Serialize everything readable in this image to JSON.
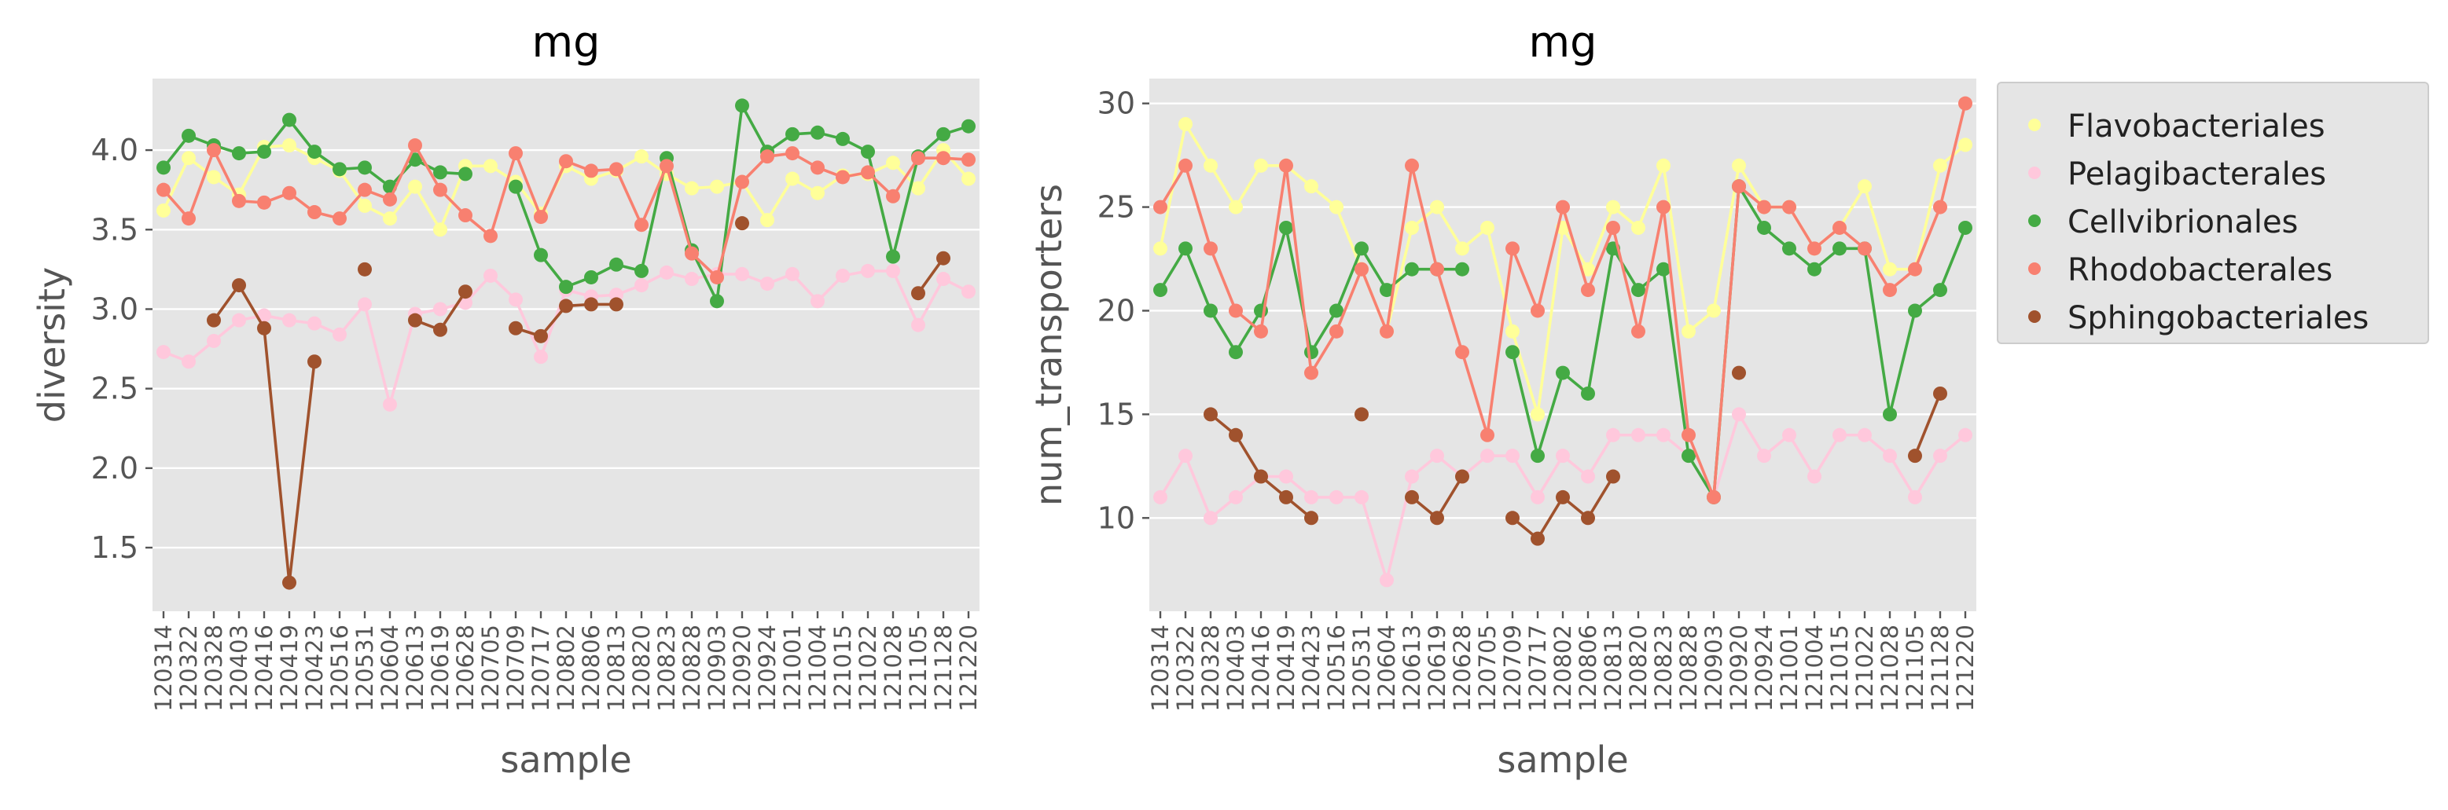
{
  "colors": {
    "Flavobacteriales": "#ffff99",
    "Pelagibacterales": "#ffc8dc",
    "Cellvibrionales": "#44aa44",
    "Rhodobacterales": "#f88070",
    "Sphingobacteriales": "#a0522d",
    "panel_bg": "#e5e5e5",
    "grid": "#ffffff"
  },
  "chart_data": [
    {
      "type": "line",
      "title": "mg",
      "xlabel": "sample",
      "ylabel": "diversity",
      "ylim": [
        1.1,
        4.45
      ],
      "yticks": [
        "1.5",
        "2.0",
        "2.5",
        "3.0",
        "3.5",
        "4.0"
      ],
      "grid": true,
      "categories": [
        "120314",
        "120322",
        "120328",
        "120403",
        "120416",
        "120419",
        "120423",
        "120516",
        "120531",
        "120604",
        "120613",
        "120619",
        "120628",
        "120705",
        "120709",
        "120717",
        "120802",
        "120806",
        "120813",
        "120820",
        "120823",
        "120828",
        "120903",
        "120920",
        "120924",
        "121001",
        "121004",
        "121015",
        "121022",
        "121028",
        "121105",
        "121128",
        "121220"
      ],
      "series": [
        {
          "name": "Flavobacteriales",
          "values": [
            3.62,
            3.95,
            3.83,
            3.72,
            4.02,
            4.03,
            3.95,
            3.87,
            3.65,
            3.57,
            3.77,
            3.5,
            3.9,
            3.9,
            3.8,
            3.6,
            3.9,
            3.82,
            3.87,
            3.96,
            3.85,
            3.76,
            3.77,
            3.8,
            3.56,
            3.82,
            3.73,
            3.84,
            3.85,
            3.92,
            3.76,
            4.0,
            3.82
          ]
        },
        {
          "name": "Pelagibacterales",
          "values": [
            2.73,
            2.67,
            2.8,
            2.93,
            2.96,
            2.93,
            2.91,
            2.84,
            3.03,
            2.4,
            2.97,
            3.0,
            3.04,
            3.21,
            3.06,
            2.7,
            3.12,
            3.08,
            3.09,
            3.15,
            3.23,
            3.19,
            3.22,
            3.22,
            3.16,
            3.22,
            3.05,
            3.21,
            3.24,
            3.24,
            2.9,
            3.19,
            3.11
          ]
        },
        {
          "name": "Cellvibrionales",
          "values": [
            3.89,
            4.09,
            4.03,
            3.98,
            3.99,
            4.19,
            3.99,
            3.88,
            3.89,
            3.77,
            3.94,
            3.86,
            3.85,
            null,
            3.77,
            3.34,
            3.14,
            3.2,
            3.28,
            3.24,
            3.95,
            3.37,
            3.05,
            4.28,
            3.99,
            4.1,
            4.11,
            4.07,
            3.99,
            3.33,
            3.96,
            4.1,
            4.15
          ]
        },
        {
          "name": "Rhodobacterales",
          "values": [
            3.75,
            3.57,
            4.0,
            3.68,
            3.67,
            3.73,
            3.61,
            3.57,
            3.75,
            3.69,
            4.03,
            3.75,
            3.59,
            3.46,
            3.98,
            3.58,
            3.93,
            3.87,
            3.88,
            3.53,
            3.9,
            3.35,
            3.2,
            3.8,
            3.96,
            3.98,
            3.89,
            3.83,
            3.86,
            3.71,
            3.95,
            3.95,
            3.94
          ]
        },
        {
          "name": "Sphingobacteriales",
          "values": [
            null,
            null,
            2.93,
            3.15,
            2.88,
            1.28,
            2.67,
            null,
            3.25,
            null,
            2.93,
            2.87,
            3.11,
            null,
            2.88,
            2.83,
            3.02,
            3.03,
            3.03,
            null,
            null,
            null,
            null,
            3.54,
            null,
            null,
            null,
            null,
            null,
            null,
            3.1,
            3.32,
            null
          ]
        }
      ]
    },
    {
      "type": "line",
      "title": "mg",
      "xlabel": "sample",
      "ylabel": "num_transporters",
      "ylim": [
        5.5,
        31.2
      ],
      "yticks": [
        "10",
        "15",
        "20",
        "25",
        "30"
      ],
      "grid": true,
      "legend": "outside-right",
      "categories": [
        "120314",
        "120322",
        "120328",
        "120403",
        "120416",
        "120419",
        "120423",
        "120516",
        "120531",
        "120604",
        "120613",
        "120619",
        "120628",
        "120705",
        "120709",
        "120717",
        "120802",
        "120806",
        "120813",
        "120820",
        "120823",
        "120828",
        "120903",
        "120920",
        "120924",
        "121001",
        "121004",
        "121015",
        "121022",
        "121028",
        "121105",
        "121128",
        "121220"
      ],
      "series": [
        {
          "name": "Flavobacteriales",
          "values": [
            23,
            29,
            27,
            25,
            27,
            27,
            26,
            25,
            22,
            19,
            24,
            25,
            23,
            24,
            19,
            15,
            24,
            22,
            25,
            24,
            27,
            19,
            20,
            27,
            25,
            25,
            23,
            24,
            26,
            22,
            22,
            27,
            28
          ]
        },
        {
          "name": "Pelagibacterales",
          "values": [
            11,
            13,
            10,
            11,
            12,
            12,
            11,
            11,
            11,
            7,
            12,
            13,
            12,
            13,
            13,
            11,
            13,
            12,
            14,
            14,
            14,
            13,
            11,
            15,
            13,
            14,
            12,
            14,
            14,
            13,
            11,
            13,
            14
          ]
        },
        {
          "name": "Cellvibrionales",
          "values": [
            21,
            23,
            20,
            18,
            20,
            24,
            18,
            20,
            23,
            21,
            22,
            22,
            22,
            null,
            18,
            13,
            17,
            16,
            23,
            21,
            22,
            13,
            11,
            26,
            24,
            23,
            22,
            23,
            23,
            15,
            20,
            21,
            24
          ]
        },
        {
          "name": "Rhodobacterales",
          "values": [
            25,
            27,
            23,
            20,
            19,
            27,
            17,
            19,
            22,
            19,
            27,
            22,
            18,
            14,
            23,
            20,
            25,
            21,
            24,
            19,
            25,
            14,
            11,
            26,
            25,
            25,
            23,
            24,
            23,
            21,
            22,
            25,
            30
          ]
        },
        {
          "name": "Sphingobacteriales",
          "values": [
            null,
            null,
            15,
            14,
            12,
            11,
            10,
            null,
            15,
            null,
            11,
            10,
            12,
            null,
            10,
            9,
            11,
            10,
            12,
            null,
            null,
            null,
            null,
            17,
            null,
            null,
            null,
            null,
            null,
            null,
            13,
            16,
            null
          ]
        }
      ]
    }
  ]
}
